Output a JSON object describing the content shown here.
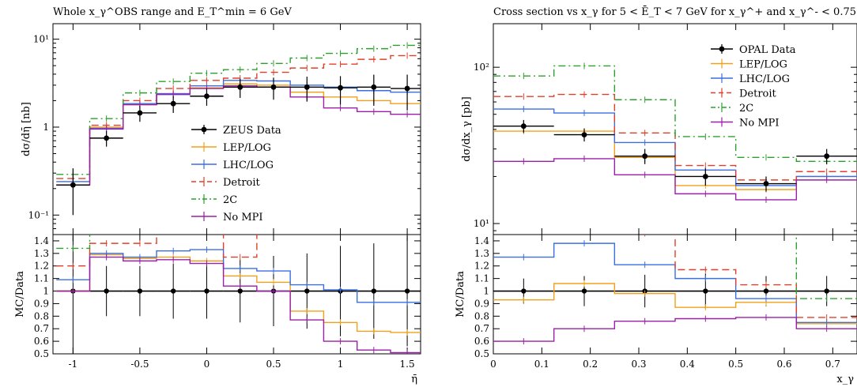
{
  "colors": {
    "data": "#000000",
    "LEP/LOG": "#f2a01a",
    "LHC/LOG": "#3a6fe0",
    "Detroit": "#e0402a",
    "2C": "#2ca02c",
    "No MPI": "#9b1fa8"
  },
  "chart_data": [
    {
      "type": "line",
      "title": "Whole x_γ^OBS range and E_T^min = 6 GeV",
      "ylabel": "dσ/dη̄ [nb]",
      "ratio_ylabel": "MC/Data",
      "xlabel": "η̄",
      "xlim": [
        -1.15,
        1.6
      ],
      "ylim": [
        0.06,
        15
      ],
      "yscale": "log",
      "ratio_ylim": [
        0.5,
        1.45
      ],
      "xticks": [
        "-1",
        "-0.5",
        "0",
        "0.5",
        "1",
        "1.5"
      ],
      "xtick_values": [
        -1,
        -0.5,
        0,
        0.5,
        1,
        1.5
      ],
      "yticks": [
        "10⁻¹",
        "1",
        "10¹"
      ],
      "ytick_values": [
        0.1,
        1,
        10
      ],
      "ratio_yticks": [
        "0.5",
        "0.6",
        "0.7",
        "0.8",
        "0.9",
        "1",
        "1.1",
        "1.2",
        "1.3",
        "1.4"
      ],
      "ratio_ytick_values": [
        0.5,
        0.6,
        0.7,
        0.8,
        0.9,
        1,
        1.1,
        1.2,
        1.3,
        1.4
      ],
      "legend": [
        "ZEUS Data",
        "LEP/LOG",
        "LHC/LOG",
        "Detroit",
        "2C",
        "No MPI"
      ],
      "bin_edges": [
        -1.125,
        -0.875,
        -0.625,
        -0.375,
        -0.125,
        0.125,
        0.375,
        0.625,
        0.875,
        1.125,
        1.375,
        1.625
      ],
      "data": {
        "name": "ZEUS Data",
        "values": [
          0.22,
          0.75,
          1.45,
          1.85,
          2.25,
          2.85,
          2.85,
          2.85,
          2.8,
          2.85,
          2.75
        ],
        "err_lo": [
          0.12,
          0.15,
          0.3,
          0.4,
          0.5,
          0.7,
          0.8,
          0.9,
          1.0,
          1.1,
          1.2
        ],
        "err_hi": [
          0.12,
          0.15,
          0.3,
          0.4,
          0.5,
          0.7,
          0.8,
          0.9,
          1.0,
          1.1,
          1.2
        ]
      },
      "series": [
        {
          "name": "LEP/LOG",
          "values": [
            0.22,
            1.0,
            1.8,
            2.4,
            2.8,
            3.1,
            3.0,
            2.5,
            2.2,
            2.0,
            1.85
          ]
        },
        {
          "name": "LHC/LOG",
          "values": [
            0.24,
            0.97,
            1.85,
            2.4,
            2.95,
            3.4,
            3.35,
            3.0,
            2.85,
            2.6,
            2.5
          ]
        },
        {
          "name": "Detroit",
          "values": [
            0.26,
            1.05,
            2.0,
            2.75,
            3.4,
            3.6,
            4.2,
            4.7,
            5.2,
            5.9,
            6.5
          ]
        },
        {
          "name": "2C",
          "values": [
            0.29,
            1.25,
            2.45,
            3.3,
            4.1,
            4.5,
            5.3,
            6.1,
            6.9,
            7.8,
            8.5
          ]
        },
        {
          "name": "No MPI",
          "values": [
            0.22,
            0.95,
            1.8,
            2.35,
            2.75,
            2.95,
            2.85,
            2.2,
            1.65,
            1.5,
            1.4
          ]
        }
      ],
      "ratio_series": [
        {
          "name": "LEP/LOG",
          "values": [
            1.0,
            1.29,
            1.26,
            1.27,
            1.24,
            1.12,
            1.07,
            0.84,
            0.75,
            0.68,
            0.67
          ]
        },
        {
          "name": "LHC/LOG",
          "values": [
            1.09,
            1.3,
            1.27,
            1.32,
            1.33,
            1.18,
            1.16,
            1.05,
            1.01,
            0.91,
            0.91
          ]
        },
        {
          "name": "Detroit",
          "values": [
            1.2,
            1.38,
            1.38,
            1.49,
            1.51,
            1.27,
            1.48,
            1.65,
            1.86,
            2.07,
            2.36
          ]
        },
        {
          "name": "2C",
          "values": [
            1.34,
            1.67,
            1.69,
            1.78,
            1.82,
            1.58,
            1.86,
            2.14,
            2.46,
            2.74,
            3.09
          ]
        },
        {
          "name": "No MPI",
          "values": [
            1.0,
            1.27,
            1.24,
            1.25,
            1.22,
            1.04,
            1.0,
            0.77,
            0.6,
            0.53,
            0.51
          ]
        }
      ],
      "ratio_data": {
        "values": [
          1,
          1,
          1,
          1,
          1,
          1,
          1,
          1,
          1,
          1,
          1
        ],
        "err": [
          0.55,
          0.2,
          0.2,
          0.22,
          0.22,
          0.25,
          0.28,
          0.3,
          0.36,
          0.38,
          0.44
        ]
      }
    },
    {
      "type": "line",
      "title": "Cross section vs x_γ for 5 < Ē_T < 7 GeV for x_γ^+ and x_γ^- < 0.75",
      "ylabel": "dσ/dx_γ [pb]",
      "ratio_ylabel": "MC/Data",
      "xlabel": "x_γ",
      "xlim": [
        0,
        0.75
      ],
      "ylim": [
        8.5,
        190
      ],
      "yscale": "log",
      "ratio_ylim": [
        0.5,
        1.45
      ],
      "xticks": [
        "0",
        "0.1",
        "0.2",
        "0.3",
        "0.4",
        "0.5",
        "0.6",
        "0.7"
      ],
      "xtick_values": [
        0,
        0.1,
        0.2,
        0.3,
        0.4,
        0.5,
        0.6,
        0.7
      ],
      "yticks": [
        "10¹",
        "10²"
      ],
      "ytick_values": [
        10,
        100
      ],
      "ratio_yticks": [
        "0.5",
        "0.6",
        "0.7",
        "0.8",
        "0.9",
        "1",
        "1.1",
        "1.2",
        "1.3",
        "1.4"
      ],
      "ratio_ytick_values": [
        0.5,
        0.6,
        0.7,
        0.8,
        0.9,
        1,
        1.1,
        1.2,
        1.3,
        1.4
      ],
      "legend": [
        "OPAL Data",
        "LEP/LOG",
        "LHC/LOG",
        "Detroit",
        "2C",
        "No MPI"
      ],
      "bin_edges": [
        0,
        0.125,
        0.25,
        0.375,
        0.5,
        0.625,
        0.75
      ],
      "data": {
        "name": "OPAL Data",
        "values": [
          42,
          37,
          27,
          20,
          18,
          27
        ],
        "err_lo": [
          4,
          3.5,
          3,
          2.5,
          2,
          3
        ],
        "err_hi": [
          4,
          3.5,
          3,
          2.5,
          2,
          3
        ]
      },
      "series": [
        {
          "name": "LEP/LOG",
          "values": [
            39,
            39,
            26.5,
            17.5,
            16.5,
            20
          ]
        },
        {
          "name": "LHC/LOG",
          "values": [
            54,
            51,
            33,
            22,
            17.5,
            20
          ]
        },
        {
          "name": "Detroit",
          "values": [
            65,
            67,
            38,
            23.5,
            19,
            21.5
          ]
        },
        {
          "name": "2C",
          "values": [
            88,
            102,
            62,
            36,
            26.5,
            25
          ]
        },
        {
          "name": "No MPI",
          "values": [
            25,
            26,
            20.5,
            15.5,
            14.2,
            19
          ]
        }
      ],
      "ratio_series": [
        {
          "name": "LEP/LOG",
          "values": [
            0.93,
            1.06,
            0.98,
            0.87,
            0.91,
            0.74
          ]
        },
        {
          "name": "LHC/LOG",
          "values": [
            1.27,
            1.38,
            1.21,
            1.1,
            0.94,
            0.75
          ]
        },
        {
          "name": "Detroit",
          "values": [
            1.54,
            1.81,
            1.46,
            1.17,
            1.05,
            0.79
          ]
        },
        {
          "name": "2C",
          "values": [
            2.1,
            2.75,
            2.3,
            1.8,
            1.47,
            0.94
          ]
        },
        {
          "name": "No MPI",
          "values": [
            0.6,
            0.7,
            0.76,
            0.78,
            0.79,
            0.7
          ]
        }
      ],
      "ratio_data": {
        "values": [
          1,
          1,
          1,
          1,
          1,
          1
        ],
        "err": [
          0.1,
          0.12,
          0.13,
          0.14,
          0.12,
          0.12
        ]
      }
    }
  ]
}
